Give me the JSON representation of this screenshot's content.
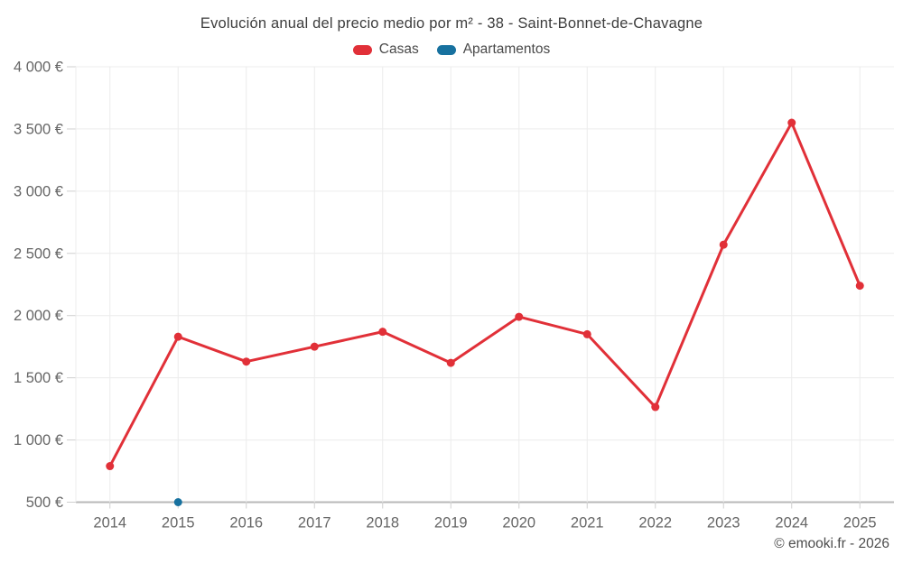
{
  "header": {
    "title": "Evolución anual del precio medio por m² - 38 - Saint-Bonnet-de-Chavagne"
  },
  "legend": {
    "items": [
      {
        "label": "Casas",
        "color": "#e13038"
      },
      {
        "label": "Apartamentos",
        "color": "#17719f"
      }
    ]
  },
  "footer": {
    "copyright": "© emooki.fr - 2026"
  },
  "colors": {
    "casas_red": "#e13038",
    "apartamentos_blue": "#17719f",
    "gridline": "#ececec",
    "axis_line": "#b8b8b8",
    "tick_mark": "#cfcfcf",
    "tick_text": "#666666",
    "title_text": "#3d3d3d",
    "background": "#ffffff"
  },
  "chart_data": {
    "type": "line",
    "title": "Evolución anual del precio medio por m² - 38 - Saint-Bonnet-de-Chavagne",
    "xlabel": "",
    "ylabel": "",
    "categories": [
      "2014",
      "2015",
      "2016",
      "2017",
      "2018",
      "2019",
      "2020",
      "2021",
      "2022",
      "2023",
      "2024",
      "2025"
    ],
    "series": [
      {
        "name": "Casas",
        "color": "#e13038",
        "values": [
          790,
          1830,
          1630,
          1750,
          1870,
          1620,
          1990,
          1850,
          1265,
          2570,
          3550,
          2240
        ]
      },
      {
        "name": "Apartamentos",
        "color": "#17719f",
        "values": [
          null,
          500,
          null,
          null,
          null,
          null,
          null,
          null,
          null,
          null,
          null,
          null
        ]
      }
    ],
    "ylim": [
      500,
      4000
    ],
    "ytick_step": 500,
    "yticks": [
      "500 €",
      "1 000 €",
      "1 500 €",
      "2 000 €",
      "2 500 €",
      "3 000 €",
      "3 500 €",
      "4 000 €"
    ],
    "grid": true,
    "legend_position": "top",
    "currency": "€"
  }
}
